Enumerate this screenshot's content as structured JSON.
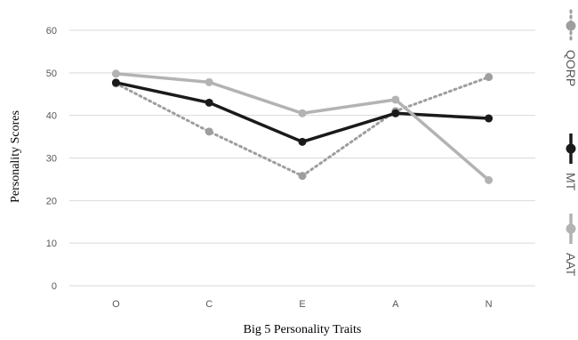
{
  "chart_data": {
    "type": "line",
    "categories": [
      "O",
      "C",
      "E",
      "A",
      "N"
    ],
    "series": [
      {
        "name": "QORP",
        "values": [
          47.5,
          36.2,
          25.8,
          41.0,
          49.0
        ],
        "color": "#9e9e9e",
        "style": "dotted"
      },
      {
        "name": "MT",
        "values": [
          47.7,
          43.0,
          33.8,
          40.5,
          39.3
        ],
        "color": "#1a1a1a",
        "style": "solid"
      },
      {
        "name": "AAT",
        "values": [
          49.8,
          47.8,
          40.5,
          43.7,
          24.8
        ],
        "color": "#b3b3b3",
        "style": "solid"
      }
    ],
    "ylim": [
      0,
      60
    ],
    "yticks": [
      0,
      10,
      20,
      30,
      40,
      50,
      60
    ],
    "xlabel": "Big 5 Personality Traits",
    "ylabel": "Personality Scores",
    "grid": true,
    "legend": "right"
  }
}
